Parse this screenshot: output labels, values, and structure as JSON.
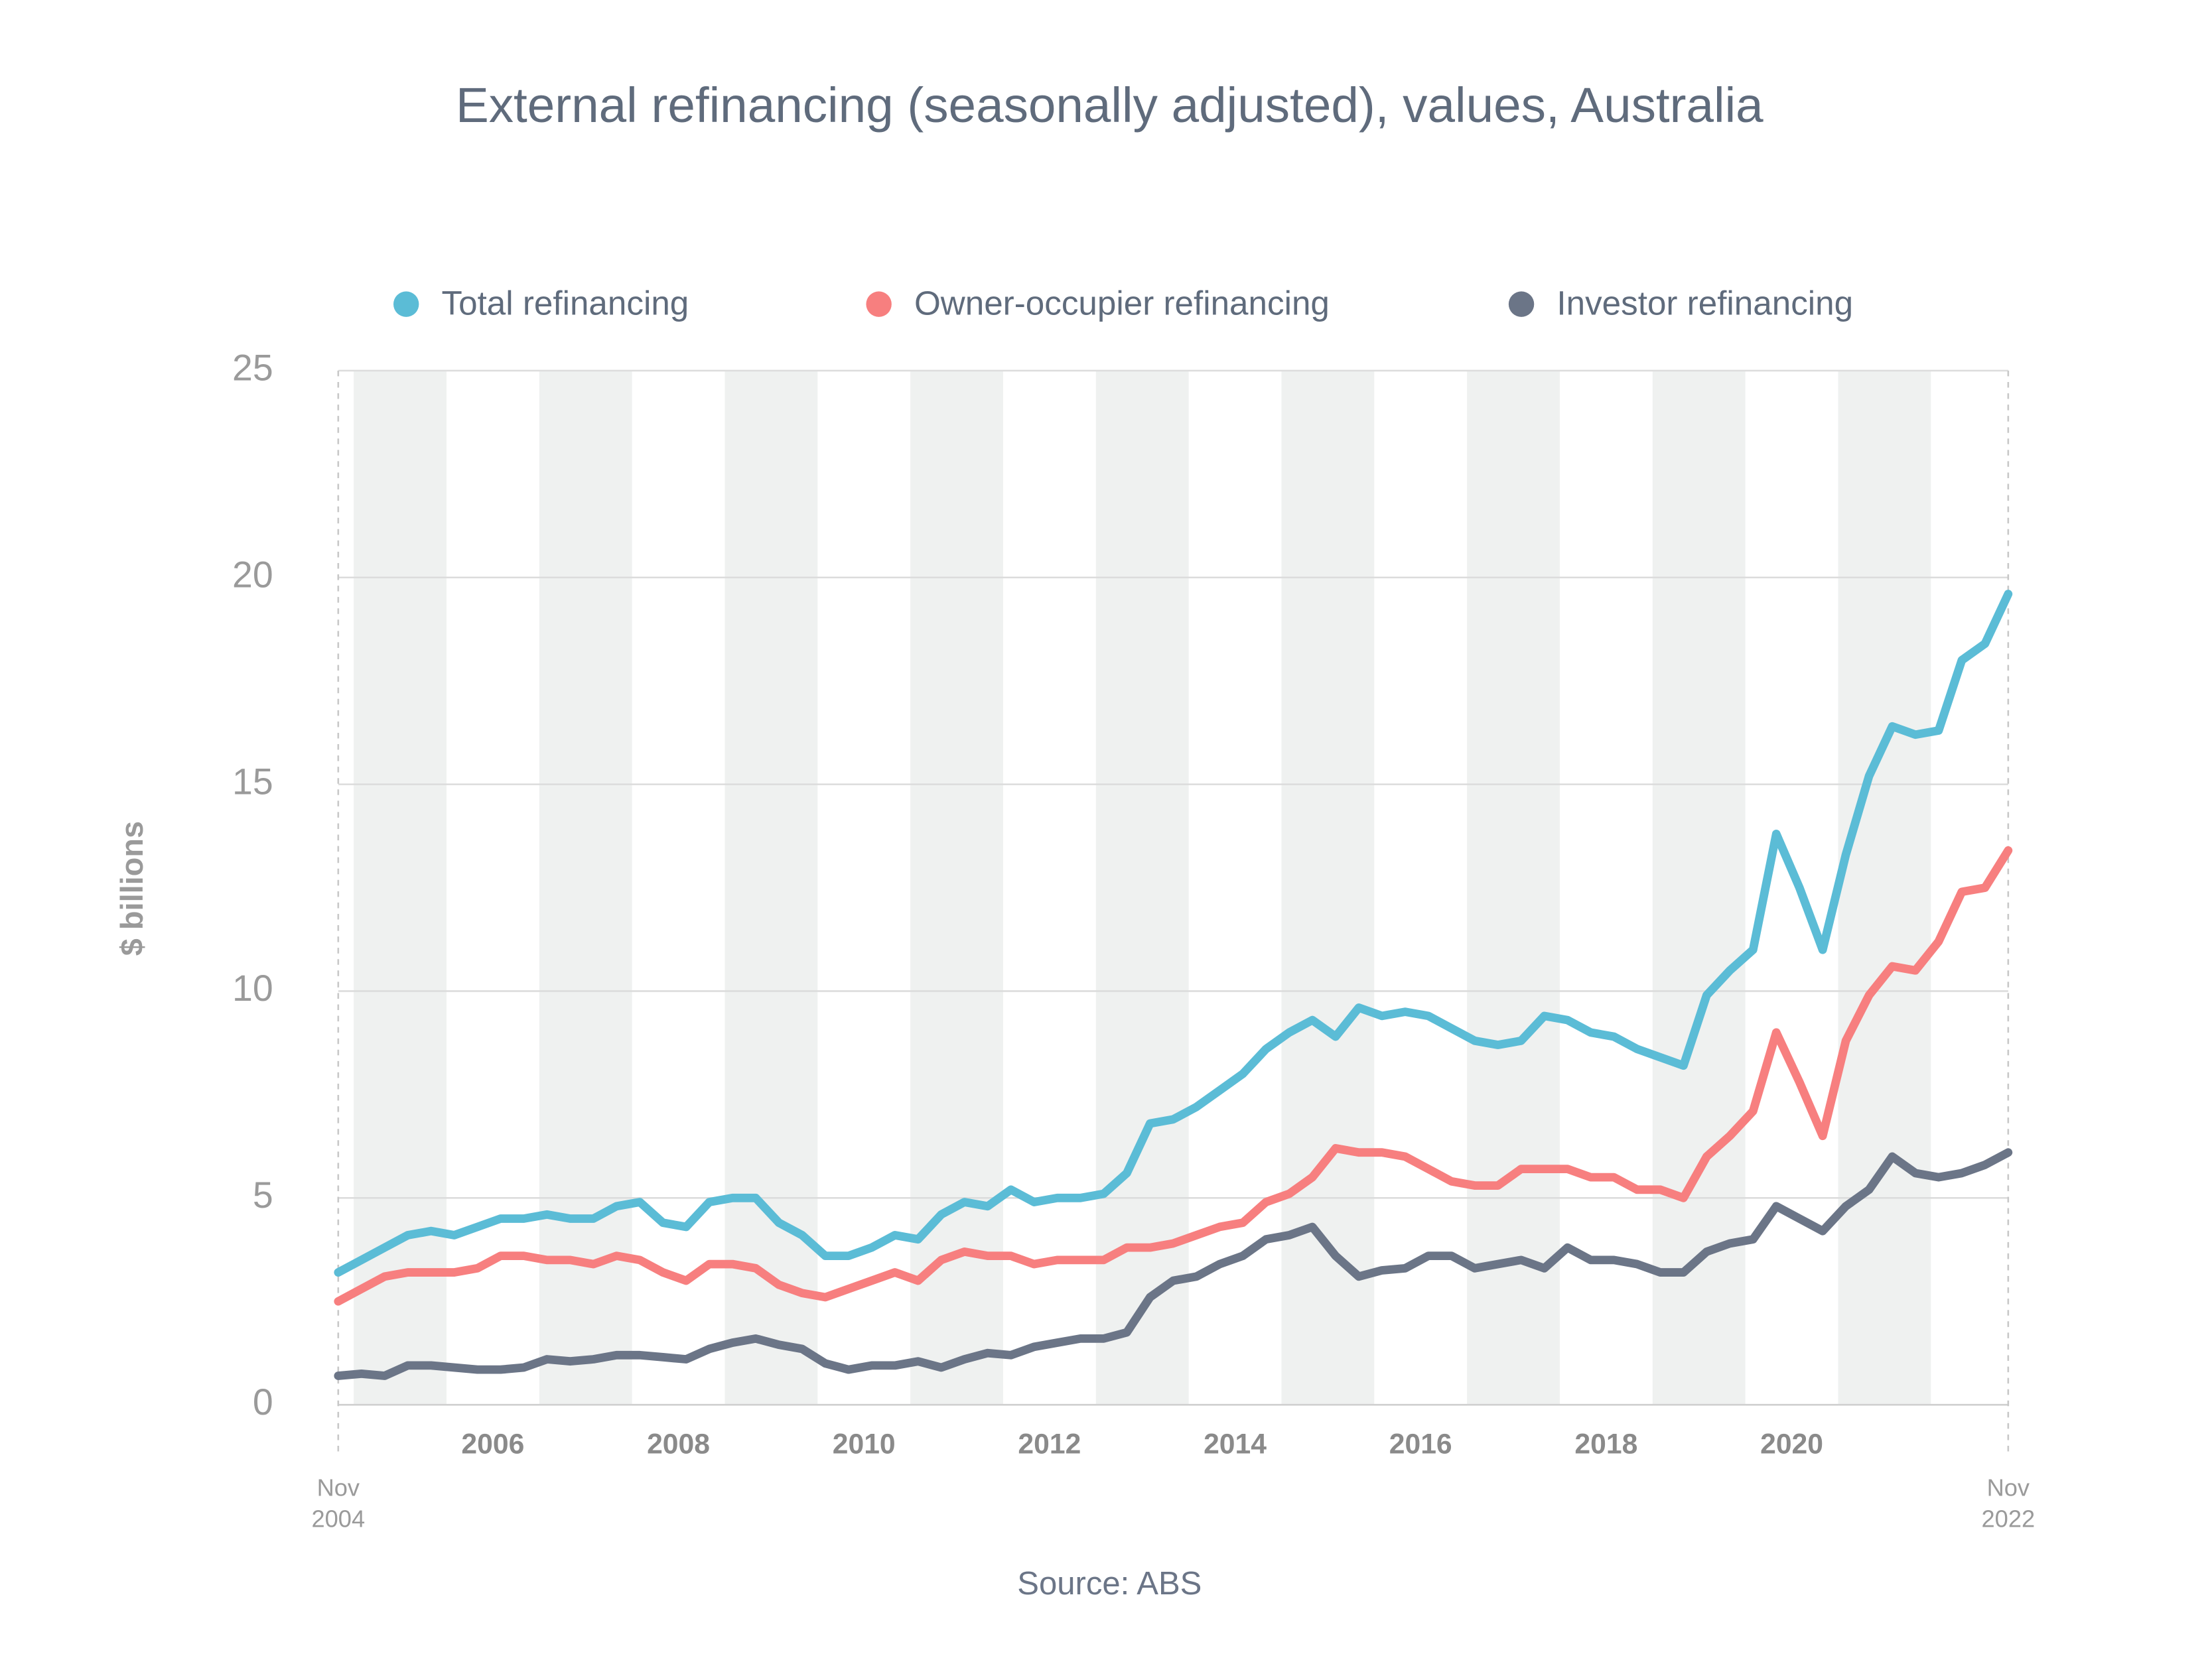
{
  "chart_data": {
    "type": "line",
    "title": "External refinancing (seasonally adjusted), values, Australia",
    "y_label": "$ billions",
    "source": "Source: ABS",
    "x": [
      "2004-11",
      "2005-02",
      "2005-05",
      "2005-08",
      "2005-11",
      "2006-02",
      "2006-05",
      "2006-08",
      "2006-11",
      "2007-02",
      "2007-05",
      "2007-08",
      "2007-11",
      "2008-02",
      "2008-05",
      "2008-08",
      "2008-11",
      "2009-02",
      "2009-05",
      "2009-08",
      "2009-11",
      "2010-02",
      "2010-05",
      "2010-08",
      "2010-11",
      "2011-02",
      "2011-05",
      "2011-08",
      "2011-11",
      "2012-02",
      "2012-05",
      "2012-08",
      "2012-11",
      "2013-02",
      "2013-05",
      "2013-08",
      "2013-11",
      "2014-02",
      "2014-05",
      "2014-08",
      "2014-11",
      "2015-02",
      "2015-05",
      "2015-08",
      "2015-11",
      "2016-02",
      "2016-05",
      "2016-08",
      "2016-11",
      "2017-02",
      "2017-05",
      "2017-08",
      "2017-11",
      "2018-02",
      "2018-05",
      "2018-08",
      "2018-11",
      "2019-02",
      "2019-05",
      "2019-08",
      "2019-11",
      "2020-02",
      "2020-05",
      "2020-08",
      "2020-11",
      "2021-02",
      "2021-05",
      "2021-08",
      "2021-11",
      "2022-02",
      "2022-05",
      "2022-08",
      "2022-11"
    ],
    "series": [
      {
        "name": "Total refinancing",
        "color": "#5bbcd6",
        "values": [
          3.2,
          3.5,
          3.8,
          4.1,
          4.2,
          4.1,
          4.3,
          4.5,
          4.5,
          4.6,
          4.5,
          4.5,
          4.8,
          4.9,
          4.4,
          4.3,
          4.9,
          5.0,
          5.0,
          4.4,
          4.1,
          3.6,
          3.6,
          3.8,
          4.1,
          4.0,
          4.6,
          4.9,
          4.8,
          5.2,
          4.9,
          5.0,
          5.0,
          5.1,
          5.6,
          6.8,
          6.9,
          7.2,
          7.6,
          8.0,
          8.6,
          9.0,
          9.3,
          8.9,
          9.6,
          9.4,
          9.5,
          9.4,
          9.1,
          8.8,
          8.7,
          8.8,
          9.4,
          9.3,
          9.0,
          8.9,
          8.6,
          8.4,
          8.2,
          9.9,
          10.5,
          11.0,
          13.8,
          12.5,
          11.0,
          13.3,
          15.2,
          16.4,
          16.2,
          16.3,
          18.0,
          18.4,
          19.6
        ]
      },
      {
        "name": "Owner-occupier refinancing",
        "color": "#f77f7f",
        "values": [
          2.5,
          2.8,
          3.1,
          3.2,
          3.2,
          3.2,
          3.3,
          3.6,
          3.6,
          3.5,
          3.5,
          3.4,
          3.6,
          3.5,
          3.2,
          3.0,
          3.4,
          3.4,
          3.3,
          2.9,
          2.7,
          2.6,
          2.8,
          3.0,
          3.2,
          3.0,
          3.5,
          3.7,
          3.6,
          3.6,
          3.4,
          3.5,
          3.5,
          3.5,
          3.8,
          3.8,
          3.9,
          4.1,
          4.3,
          4.4,
          4.9,
          5.1,
          5.5,
          6.2,
          6.1,
          6.1,
          6.0,
          5.7,
          5.4,
          5.3,
          5.3,
          5.7,
          5.7,
          5.7,
          5.5,
          5.5,
          5.2,
          5.2,
          5.0,
          6.0,
          6.5,
          7.1,
          9.0,
          7.8,
          6.5,
          8.8,
          9.9,
          10.6,
          10.5,
          11.2,
          12.4,
          12.5,
          13.4
        ]
      },
      {
        "name": "Investor refinancing",
        "color": "#6b7587",
        "values": [
          0.7,
          0.75,
          0.7,
          0.95,
          0.95,
          0.9,
          0.85,
          0.85,
          0.9,
          1.1,
          1.05,
          1.1,
          1.2,
          1.2,
          1.15,
          1.1,
          1.35,
          1.5,
          1.6,
          1.45,
          1.35,
          1.0,
          0.85,
          0.95,
          0.95,
          1.05,
          0.9,
          1.1,
          1.25,
          1.2,
          1.4,
          1.5,
          1.6,
          1.6,
          1.75,
          2.6,
          3.0,
          3.1,
          3.4,
          3.6,
          4.0,
          4.1,
          4.3,
          3.6,
          3.1,
          3.25,
          3.3,
          3.6,
          3.6,
          3.3,
          3.4,
          3.5,
          3.3,
          3.8,
          3.5,
          3.5,
          3.4,
          3.2,
          3.2,
          3.7,
          3.9,
          4.0,
          4.8,
          4.5,
          4.2,
          4.8,
          5.2,
          6.0,
          5.6,
          5.5,
          5.6,
          5.8,
          6.1
        ]
      }
    ],
    "xlim": [
      {
        "value": "2004-11",
        "label": [
          "Nov",
          "2004"
        ]
      },
      {
        "value": "2022-11",
        "label": [
          "Nov",
          "2022"
        ]
      }
    ],
    "xticks": [
      2006,
      2008,
      2010,
      2012,
      2014,
      2016,
      2018,
      2020
    ],
    "ylim": [
      0,
      25
    ],
    "yticks": [
      0,
      5,
      10,
      15,
      20,
      25
    ],
    "grid": true,
    "legend": "top"
  }
}
